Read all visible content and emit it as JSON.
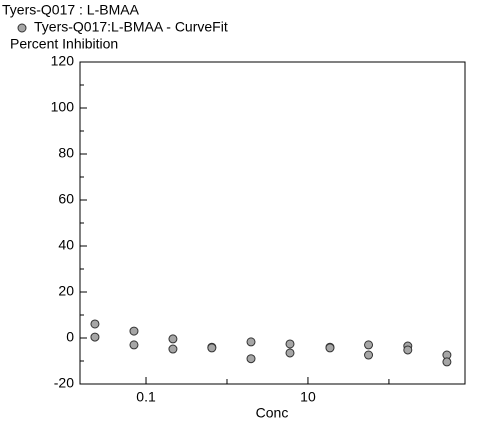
{
  "chart_data": {
    "type": "scatter",
    "title": "Tyers-Q017 : L-BMAA",
    "ylabel": "Percent Inhibition",
    "xlabel": "Conc",
    "xscale": "log",
    "xlim": [
      0.0153,
      870
    ],
    "ylim": [
      -20,
      120
    ],
    "xticks": [
      0.1,
      10
    ],
    "xminor": [
      1,
      100
    ],
    "yticks": [
      -20,
      0,
      20,
      40,
      60,
      80,
      100,
      120
    ],
    "yminor": [
      -10,
      10,
      30,
      50,
      70,
      90,
      110
    ],
    "series": [
      {
        "name": "Tyers-Q017:L-BMAA - CurveFit",
        "color": "#a6a6a6",
        "x": [
          0.0234,
          0.0234,
          0.071,
          0.071,
          0.215,
          0.215,
          0.65,
          0.65,
          1.98,
          1.98,
          6.0,
          6.0,
          18.7,
          18.7,
          56,
          56,
          171,
          171,
          520,
          520
        ],
        "values": [
          6.1,
          0.4,
          3,
          -3,
          -0.4,
          -4.8,
          -4,
          -4.3,
          -1.7,
          -9,
          -2.6,
          -6.5,
          -4,
          -4.3,
          -3,
          -7.4,
          -3.5,
          -5.2,
          -7.4,
          -10.4
        ]
      }
    ]
  }
}
